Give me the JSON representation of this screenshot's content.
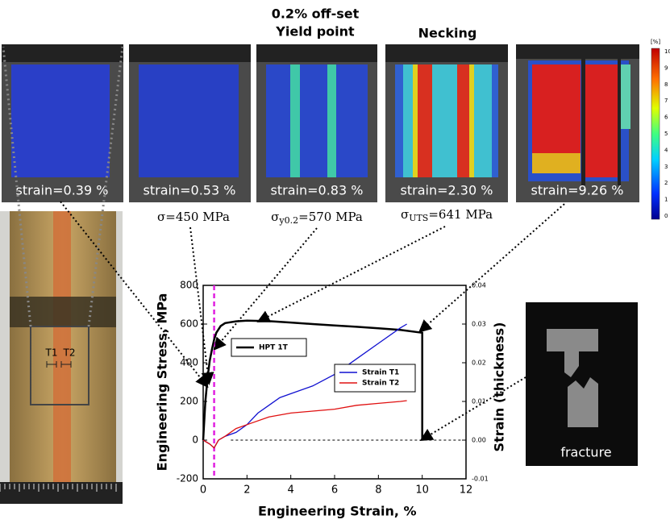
{
  "headings": [
    {
      "lines": [
        "0.2% off-set",
        "Yield point"
      ]
    },
    {
      "lines": [
        "Necking"
      ]
    }
  ],
  "panels": [
    {
      "label": "strain=0.39 %"
    },
    {
      "label": "strain=0.53 %"
    },
    {
      "label": "strain=0.83 %"
    },
    {
      "label": "strain=2.30 %"
    },
    {
      "label": "strain=9.26 %"
    }
  ],
  "colorbar": {
    "unit": "[%]",
    "ticks": [
      0,
      1,
      2,
      3,
      4,
      5,
      6,
      7,
      8,
      9,
      10
    ]
  },
  "annotations": [
    {
      "symbol": "σ",
      "subscript": null,
      "text": "=450 MPa"
    },
    {
      "symbol": "σ",
      "subscript": "y0.2",
      "text": "=570 MPa"
    },
    {
      "symbol": "σ",
      "subscript": "UTS",
      "text": "=641 MPa"
    }
  ],
  "specimen": {
    "labels": [
      "T1",
      "T2"
    ]
  },
  "fracture_label": "fracture",
  "chart_data": {
    "type": "line",
    "xlabel": "Engineering Strain, %",
    "ylabel": "Engineering Stress, MPa",
    "y2label": "Strain (thickness)",
    "xlim": [
      0,
      12
    ],
    "xticks": [
      0,
      2,
      4,
      6,
      8,
      10,
      12
    ],
    "ylim": [
      -200,
      800
    ],
    "yticks": [
      -200,
      0,
      200,
      400,
      600,
      800
    ],
    "y2lim": [
      -0.01,
      0.04
    ],
    "y2ticks": [
      -0.01,
      {
        "value": 0,
        "label": "0.00"
      },
      0.01,
      0.02,
      0.03,
      0.04
    ],
    "vline": {
      "x": 0.5,
      "color": "#e020e0"
    },
    "series": [
      {
        "name": "HPT 1T",
        "color": "#000000",
        "x": [
          0,
          0.1,
          0.2,
          0.3,
          0.4,
          0.5,
          0.6,
          0.8,
          1.0,
          1.5,
          2,
          3,
          4,
          5,
          6,
          7,
          8,
          9,
          10,
          10
        ],
        "values": [
          0,
          200,
          320,
          410,
          470,
          520,
          555,
          590,
          605,
          614,
          618,
          615,
          608,
          600,
          593,
          586,
          578,
          570,
          555,
          0
        ]
      },
      {
        "name": "Strain T1",
        "color": "#1010d0",
        "axis": "y2",
        "x": [
          0,
          0.3,
          0.5,
          0.7,
          1,
          1.5,
          2,
          2.5,
          3,
          3.5,
          4,
          5,
          6,
          7,
          8,
          9,
          9.3
        ],
        "values": [
          0,
          -0.001,
          -0.002,
          0,
          0.001,
          0.002,
          0.004,
          0.007,
          0.009,
          0.011,
          0.012,
          0.014,
          0.017,
          0.021,
          0.025,
          0.029,
          0.03
        ]
      },
      {
        "name": "Strain T2",
        "color": "#e01010",
        "axis": "y2",
        "x": [
          0,
          0.3,
          0.5,
          0.7,
          1,
          1.5,
          2,
          3,
          4,
          5,
          6,
          7,
          8,
          9,
          9.3
        ],
        "values": [
          0,
          -0.001,
          -0.002,
          0,
          0.001,
          0.003,
          0.004,
          0.006,
          0.007,
          0.0075,
          0.008,
          0.009,
          0.0095,
          0.01,
          0.0102
        ]
      }
    ]
  }
}
